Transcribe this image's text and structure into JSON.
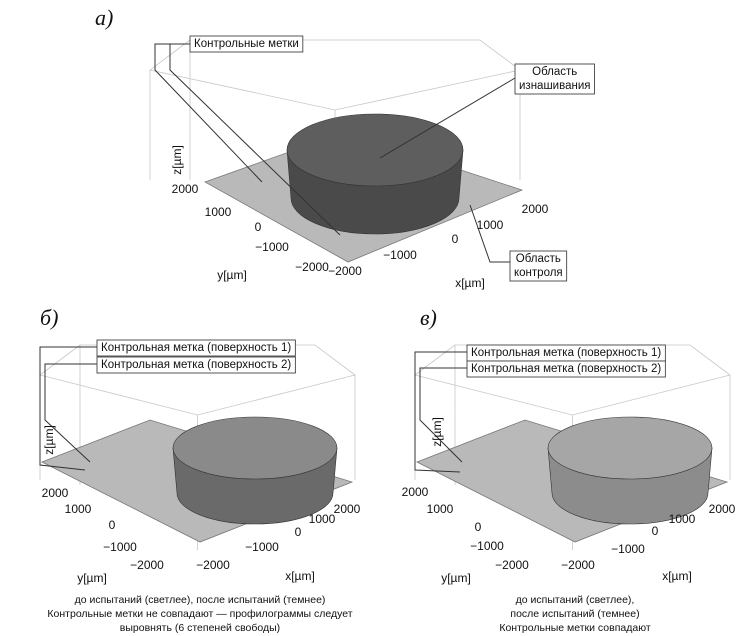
{
  "panels": [
    {
      "label": "а)",
      "axes": {
        "z": "z[µm]",
        "y": "y[µm]",
        "x": "x[µm]",
        "y_ticks": [
          "2000",
          "1000",
          "0",
          "−1000",
          "−2000"
        ],
        "x_ticks": [
          "−2000",
          "−1000",
          "0",
          "1000",
          "2000"
        ]
      },
      "annotations": [
        {
          "lines": [
            "Контрольные метки"
          ]
        },
        {
          "lines": [
            "Область",
            "изнашивания"
          ]
        },
        {
          "lines": [
            "Область",
            "контроля"
          ]
        }
      ]
    },
    {
      "label": "б)",
      "axes": {
        "z": "z[µm]",
        "y": "y[µm]",
        "x": "x[µm]",
        "y_ticks": [
          "2000",
          "1000",
          "0",
          "−1000",
          "−2000"
        ],
        "x_ticks": [
          "−2000",
          "−1000",
          "0",
          "1000",
          "2000"
        ]
      },
      "annotations": [
        {
          "lines": [
            "Контрольная метка (поверхность 1)"
          ]
        },
        {
          "lines": [
            "Контрольная метка (поверхность 2)"
          ]
        }
      ],
      "caption": [
        "до испытаний (светлее), после испытаний (темнее)",
        "Контрольные метки не совпадают — профилограммы следует",
        "выровнять (6 степеней свободы)"
      ]
    },
    {
      "label": "в)",
      "axes": {
        "z": "z[µm]",
        "y": "y[µm]",
        "x": "x[µm]",
        "y_ticks": [
          "2000",
          "1000",
          "0",
          "−1000",
          "−2000"
        ],
        "x_ticks": [
          "−2000",
          "−1000",
          "0",
          "1000",
          "2000"
        ]
      },
      "annotations": [
        {
          "lines": [
            "Контрольная метка (поверхность 1)"
          ]
        },
        {
          "lines": [
            "Контрольная метка (поверхность 2)"
          ]
        }
      ],
      "caption": [
        "до испытаний (светлее),",
        "после испытаний (темнее)",
        "Контрольные метки совпадают"
      ]
    }
  ]
}
